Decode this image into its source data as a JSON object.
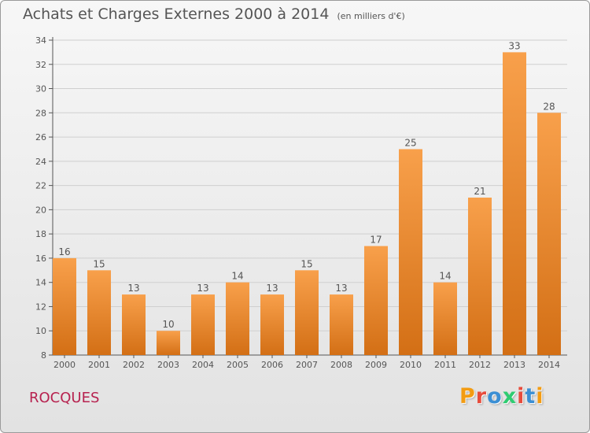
{
  "colors": {
    "bar_top": "#f8a04b",
    "bar_bottom": "#d36f15",
    "axis": "#555555",
    "grid": "#cfcfcf",
    "text": "#555555",
    "commune": "#b7224f",
    "logo": [
      "#f39c12",
      "#e74c3c",
      "#3b8fd4",
      "#2ecc71",
      "#e74c3c",
      "#3b8fd4"
    ]
  },
  "header": {
    "title": "Achats et Charges Externes 2000 à 2014",
    "unit": "(en milliers d'€)"
  },
  "footer": {
    "commune": "ROCQUES",
    "logo_text": "Proxiti"
  },
  "chart_data": {
    "type": "bar",
    "title": "Achats et Charges Externes 2000 à 2014",
    "subtitle": "(en milliers d'€)",
    "categories": [
      "2000",
      "2001",
      "2002",
      "2003",
      "2004",
      "2005",
      "2006",
      "2007",
      "2008",
      "2009",
      "2010",
      "2011",
      "2012",
      "2013",
      "2014"
    ],
    "values": [
      16,
      15,
      13,
      10,
      13,
      14,
      13,
      15,
      13,
      17,
      25,
      14,
      21,
      33,
      28
    ],
    "ylim": [
      8,
      34
    ],
    "yticks": [
      8,
      10,
      12,
      14,
      16,
      18,
      20,
      22,
      24,
      26,
      28,
      30,
      32,
      34
    ],
    "grid": true,
    "data_labels": true
  }
}
